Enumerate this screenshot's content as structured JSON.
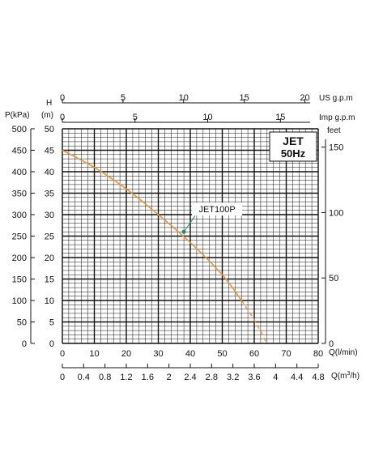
{
  "chart_data": {
    "type": "line",
    "badge": {
      "line1": "JET",
      "line2": "50Hz"
    },
    "axes": {
      "q_lmin": {
        "label": "Q(l/min)",
        "range": [
          0,
          80
        ],
        "ticks": [
          "0",
          "10",
          "20",
          "30",
          "40",
          "50",
          "60",
          "70",
          "80"
        ]
      },
      "q_m3h": {
        "label_prefix": "Q(m",
        "label_sup": "3",
        "label_suffix": "/h)",
        "range": [
          0,
          4.8
        ],
        "ticks": [
          "0",
          "0.4",
          "0.8",
          "1.2",
          "1.6",
          "2",
          "2.4",
          "2.8",
          "3.2",
          "3.6",
          "4",
          "4.4",
          "4.8"
        ]
      },
      "h_m": {
        "label_top": "H",
        "label_bottom": "(m)",
        "range": [
          0,
          50
        ],
        "ticks": [
          "0",
          "5",
          "10",
          "15",
          "20",
          "25",
          "30",
          "35",
          "40",
          "45",
          "50"
        ]
      },
      "p_kpa": {
        "label": "P(kPa)",
        "range": [
          0,
          500
        ],
        "ticks": [
          "0",
          "50",
          "100",
          "150",
          "200",
          "250",
          "300",
          "350",
          "400",
          "450",
          "500"
        ]
      },
      "feet": {
        "label": "feet",
        "range": [
          0,
          164
        ],
        "ticks": [
          "0",
          "50",
          "100",
          "150"
        ]
      },
      "imp_gpm": {
        "label": "Imp g.p.m",
        "range": [
          0,
          17.6
        ],
        "ticks": [
          "0",
          "5",
          "10",
          "15"
        ]
      },
      "us_gpm": {
        "label": "US g.p.m",
        "range": [
          0,
          21.1
        ],
        "ticks": [
          "0",
          "5",
          "10",
          "15",
          "20"
        ]
      }
    },
    "grid": true,
    "colors": {
      "curve": "#e8963c",
      "marker": "#1f8f6f",
      "grid": "#111111"
    },
    "series": [
      {
        "name": "JET100P",
        "solid": {
          "x": [
            0,
            10,
            20,
            30,
            40,
            50,
            56
          ],
          "y": [
            45,
            41,
            36,
            30,
            23.5,
            16,
            10
          ]
        },
        "dashed": {
          "x": [
            56,
            60,
            64
          ],
          "y": [
            10,
            5.5,
            0
          ]
        }
      }
    ],
    "annotation": {
      "text": "JET100P",
      "point": [
        38,
        26
      ]
    }
  }
}
